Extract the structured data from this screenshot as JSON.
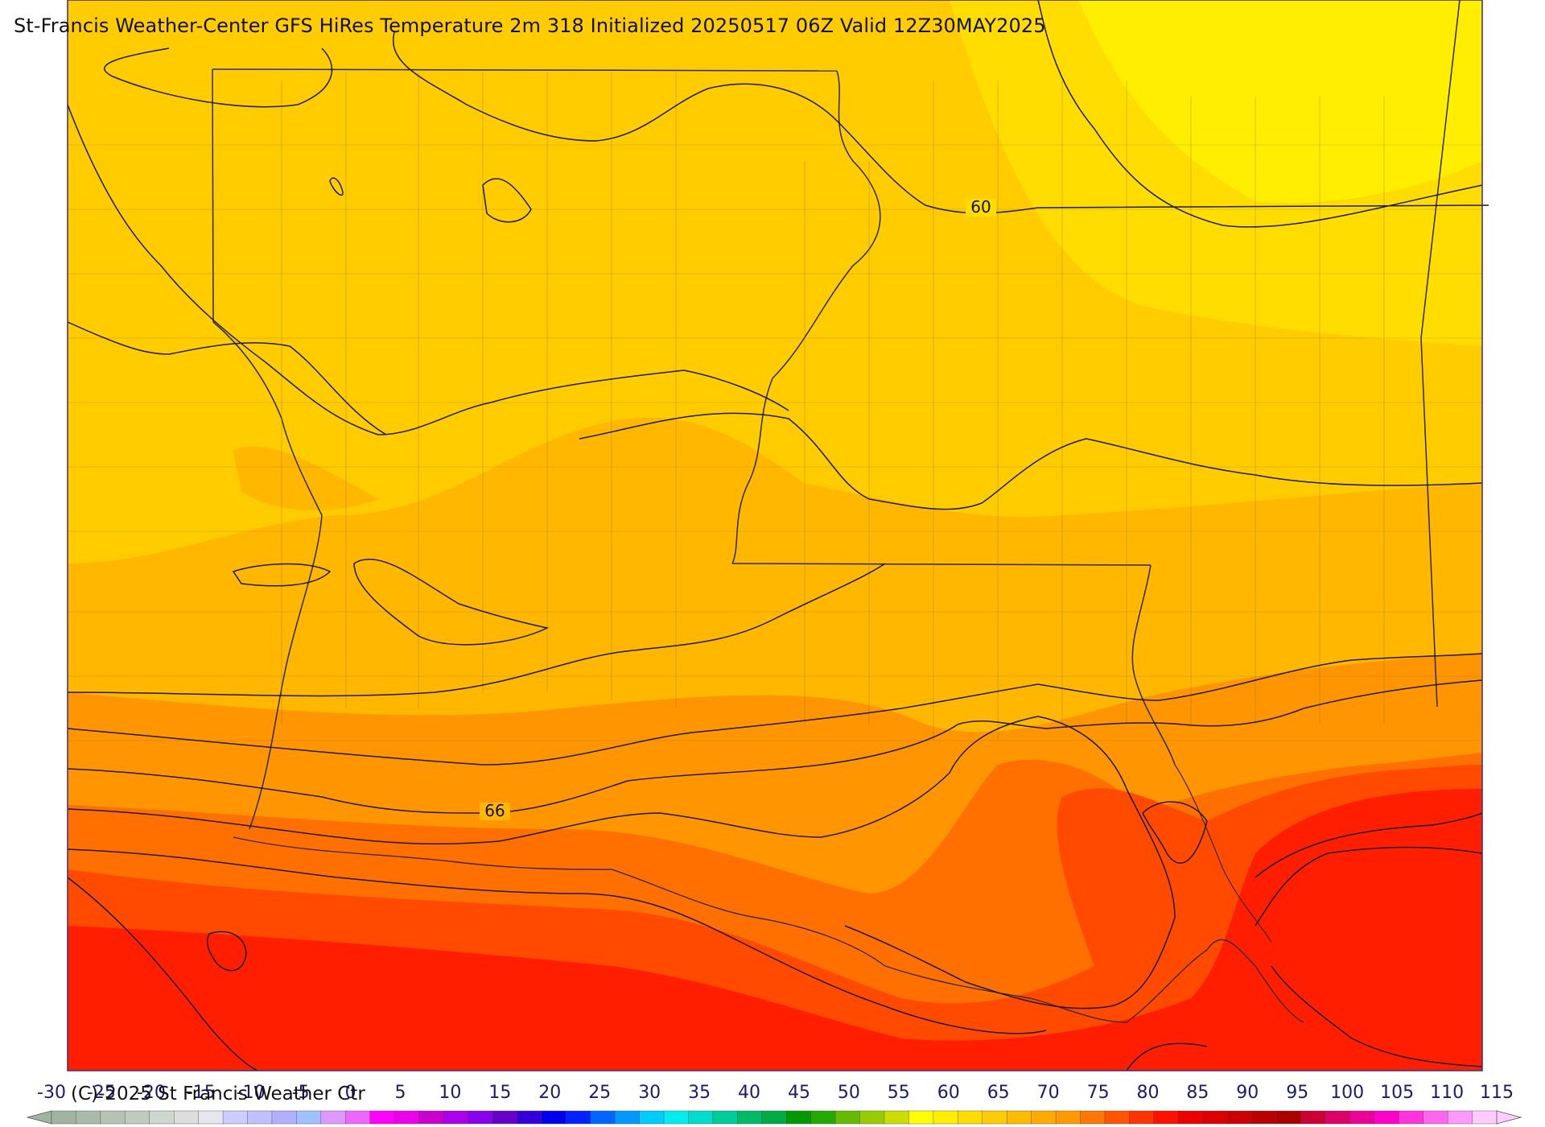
{
  "title": "St-Francis Weather-Center GFS HiRes Temperature 2m  318 Initialized 20250517 06Z Valid 12Z30MAY2025",
  "credit": "(C)-2025 St Francis Weather Ctr",
  "contour_labels": [
    "60",
    "66"
  ],
  "colorbar": {
    "ticks": [
      "-30",
      "-25",
      "-20",
      "-15",
      "-10",
      "-5",
      "0",
      "5",
      "10",
      "15",
      "20",
      "25",
      "30",
      "35",
      "40",
      "45",
      "50",
      "55",
      "60",
      "65",
      "70",
      "75",
      "80",
      "85",
      "90",
      "95",
      "100",
      "105",
      "110",
      "115"
    ],
    "min": -30,
    "max": 115,
    "step": 2.5,
    "colors": [
      "#9fb59f",
      "#a8bba8",
      "#b4c3b4",
      "#c0cbc0",
      "#cfd6cf",
      "#dddddd",
      "#e6e6ee",
      "#ccccff",
      "#c0c0ff",
      "#b0b0ff",
      "#a0c0ff",
      "#dd99ff",
      "#ee66ff",
      "#ff00ff",
      "#ee00ee",
      "#cc00cc",
      "#aa00ee",
      "#8800ee",
      "#6600cc",
      "#3300dd",
      "#0000ee",
      "#0022ff",
      "#0066ff",
      "#0099ff",
      "#00ccff",
      "#00eeee",
      "#00ddcc",
      "#00cc99",
      "#00bb66",
      "#00aa44",
      "#009900",
      "#22aa00",
      "#66bb00",
      "#99cc00",
      "#ccdd00",
      "#ffff00",
      "#ffee00",
      "#ffdd00",
      "#ffcc00",
      "#ffbb00",
      "#ffaa00",
      "#ff9900",
      "#ff7700",
      "#ff5500",
      "#ff3300",
      "#ff1100",
      "#ee0000",
      "#dd0000",
      "#cc0000",
      "#bb0000",
      "#aa0000",
      "#cc0033",
      "#dd0066",
      "#ee0099",
      "#ff00cc",
      "#ff33dd",
      "#ff66ee",
      "#ff99ff",
      "#ffccff"
    ]
  },
  "colors": {
    "yellow": "#ffee00",
    "gold": "#ffcc00",
    "amber": "#ffb700",
    "orange": "#ff9500",
    "dark_orange": "#ff7000",
    "red_orange": "#ff4a00",
    "red": "#ff1f00",
    "contour": "#1a1a1a",
    "county": "#8a6a20",
    "frame": "#3a2a8a"
  }
}
